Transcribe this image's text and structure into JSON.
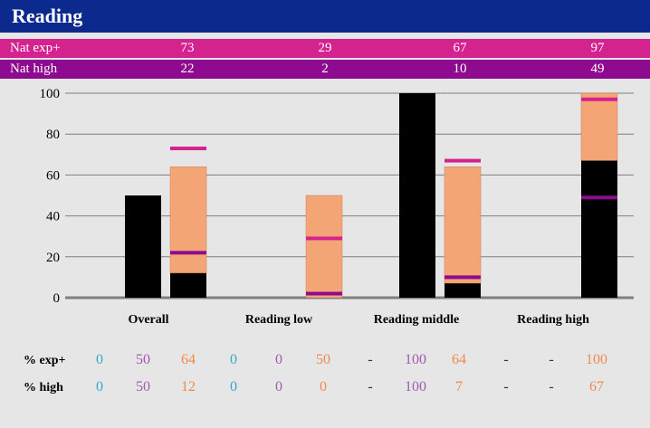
{
  "title": "Reading",
  "national": {
    "exp_label": "Nat exp+",
    "high_label": "Nat high",
    "exp_values": [
      "73",
      "29",
      "67",
      "97"
    ],
    "high_values": [
      "22",
      "2",
      "10",
      "49"
    ]
  },
  "chart_data": {
    "type": "bar",
    "categories": [
      "Overall",
      "Reading low",
      "Reading middle",
      "Reading high"
    ],
    "ylim": [
      0,
      100
    ],
    "yticks": [
      0,
      20,
      40,
      60,
      80,
      100
    ],
    "bars": [
      {
        "category": 0,
        "slot": 0,
        "exp": 50,
        "high": 50
      },
      {
        "category": 0,
        "slot": 1,
        "exp": 64,
        "high": 12
      },
      {
        "category": 1,
        "slot": 1,
        "exp": 50,
        "high": 0
      },
      {
        "category": 2,
        "slot": 0,
        "exp": 100,
        "high": 100
      },
      {
        "category": 2,
        "slot": 1,
        "exp": 64,
        "high": 7
      },
      {
        "category": 3,
        "slot": 1,
        "exp": 100,
        "high": 67
      }
    ],
    "markers": [
      {
        "category": 0,
        "exp": 73,
        "high": 22
      },
      {
        "category": 1,
        "exp": 29,
        "high": 2
      },
      {
        "category": 2,
        "exp": 67,
        "high": 10
      },
      {
        "category": 3,
        "exp": 97,
        "high": 49
      }
    ],
    "colors": {
      "high": "#000000",
      "exp": "#f4a576",
      "exp_marker": "#d4238f",
      "high_marker": "#8e0a8e"
    }
  },
  "table": {
    "exp_label": "% exp+",
    "high_label": "% high",
    "exp_values": [
      "0",
      "50",
      "64",
      "0",
      "0",
      "50",
      "-",
      "100",
      "64",
      "-",
      "-",
      "100"
    ],
    "high_values": [
      "0",
      "50",
      "12",
      "0",
      "0",
      "0",
      "-",
      "100",
      "7",
      "-",
      "-",
      "67"
    ]
  }
}
